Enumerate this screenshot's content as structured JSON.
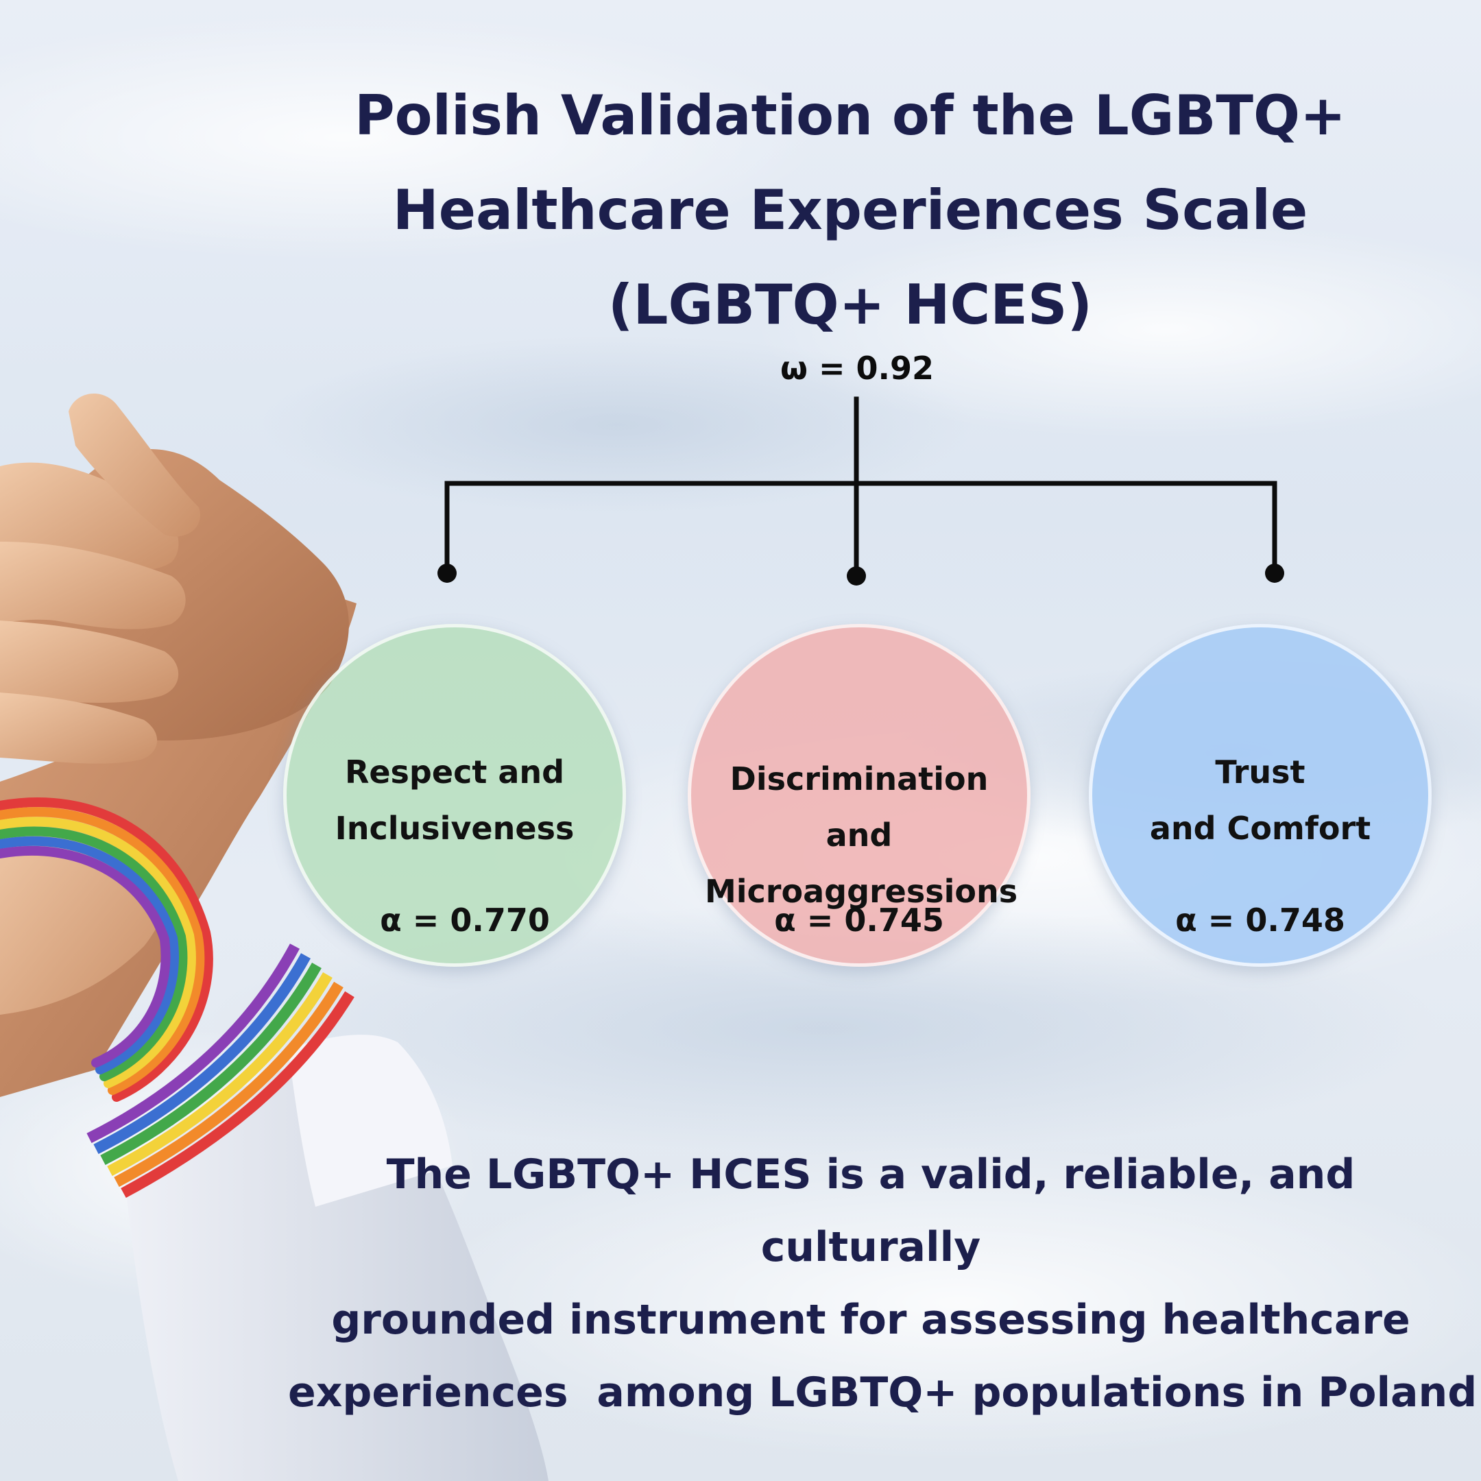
{
  "title": {
    "line1": "Polish Validation of the LGBTQ+",
    "line2": "Healthcare Experiences Scale",
    "line3": "(LGBTQ+ HCES)"
  },
  "omega": "ω = 0.92",
  "factors": [
    {
      "line1": "Respect and",
      "line2": "Inclusiveness",
      "alpha": "α = 0.770",
      "color": "#b4deb8"
    },
    {
      "line1": "Discrimination and",
      "line2": "Microaggressions",
      "alpha": "α = 0.745",
      "color": "#f0b0b0"
    },
    {
      "line1": "Trust",
      "line2": "and Comfort",
      "alpha": "α = 0.748",
      "color": "#a8ccf5"
    }
  ],
  "conclusion": {
    "line1": "The LGBTQ+ HCES is a valid, reliable, and culturally",
    "line2": "grounded instrument for assessing healthcare",
    "line3": "experiences  among LGBTQ+ populations in Poland"
  },
  "colors": {
    "title": "#1c1f4c",
    "connector": "#0c0c0c"
  }
}
